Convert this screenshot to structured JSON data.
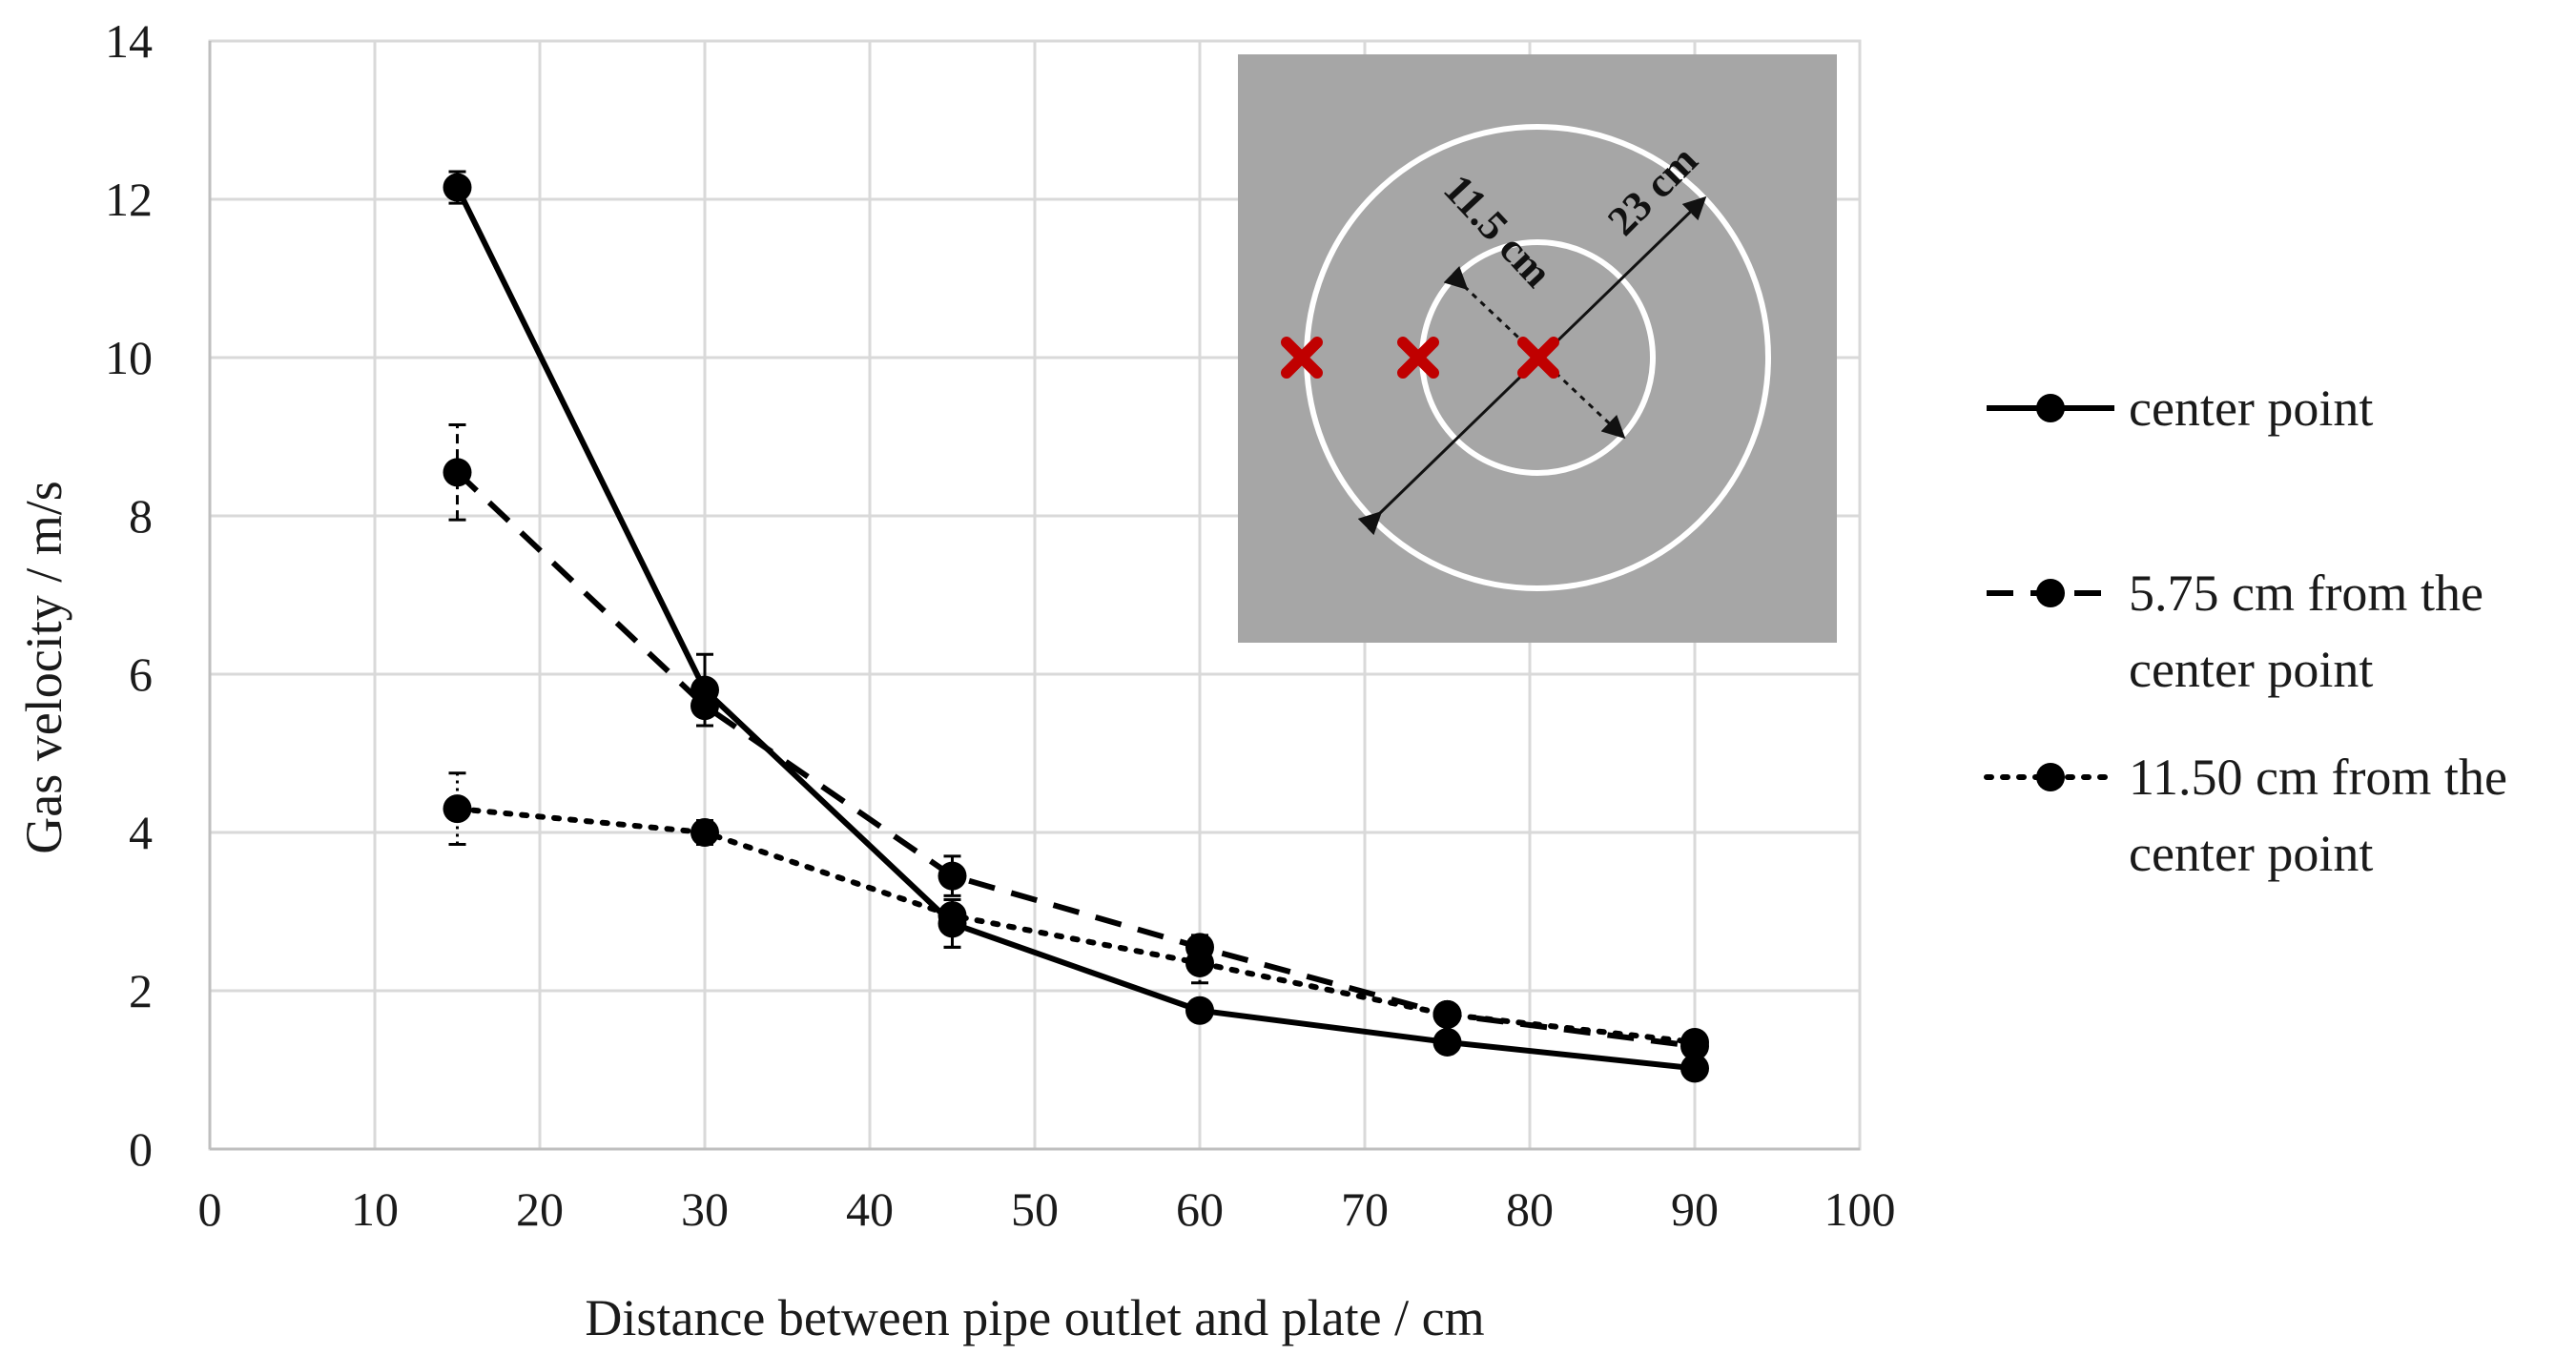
{
  "chart_data": {
    "type": "line",
    "xlabel": "Distance between pipe outlet and plate / cm",
    "ylabel": "Gas velocity  / m/s",
    "xlim": [
      0,
      100
    ],
    "ylim": [
      0,
      14
    ],
    "x_ticks": [
      "0",
      "10",
      "20",
      "30",
      "40",
      "50",
      "60",
      "70",
      "80",
      "90",
      "100"
    ],
    "y_ticks": [
      "0",
      "2",
      "4",
      "6",
      "8",
      "10",
      "12",
      "14"
    ],
    "grid": true,
    "legend_position": "right",
    "x": [
      15,
      30,
      45,
      60,
      75,
      90
    ],
    "series": [
      {
        "name": "center point",
        "line_style": "solid",
        "values": [
          12.15,
          5.8,
          2.85,
          1.75,
          1.35,
          1.02
        ],
        "error": [
          0.2,
          0.45,
          0.3,
          0.1,
          0.1,
          0.08
        ]
      },
      {
        "name": "5.75 cm from the center point",
        "line_style": "dashed",
        "values": [
          8.55,
          5.6,
          3.45,
          2.55,
          1.7,
          1.3
        ],
        "error": [
          0.6,
          0.25,
          0.25,
          0.15,
          0.1,
          0.1
        ]
      },
      {
        "name": "11.50 cm from the center point",
        "line_style": "dotted",
        "values": [
          4.3,
          4.0,
          2.95,
          2.35,
          1.7,
          1.35
        ],
        "error": [
          0.45,
          0.15,
          0.4,
          0.25,
          0.1,
          0.1
        ]
      }
    ],
    "legend": {
      "entries": [
        {
          "lines": [
            "center point"
          ]
        },
        {
          "lines": [
            "5.75 cm from the",
            "center point"
          ]
        },
        {
          "lines": [
            "11.50 cm from the",
            "center point"
          ]
        }
      ]
    },
    "inset": {
      "labels": [
        "11.5 cm",
        "23 cm"
      ],
      "background_color": "#a6a6a6",
      "ring_color": "#ffffff",
      "marker_color": "#c00000",
      "marker_count": 3
    },
    "colors": {
      "line": "#000000",
      "grid": "#d9d9d9",
      "text": "#1a1a1a"
    }
  }
}
